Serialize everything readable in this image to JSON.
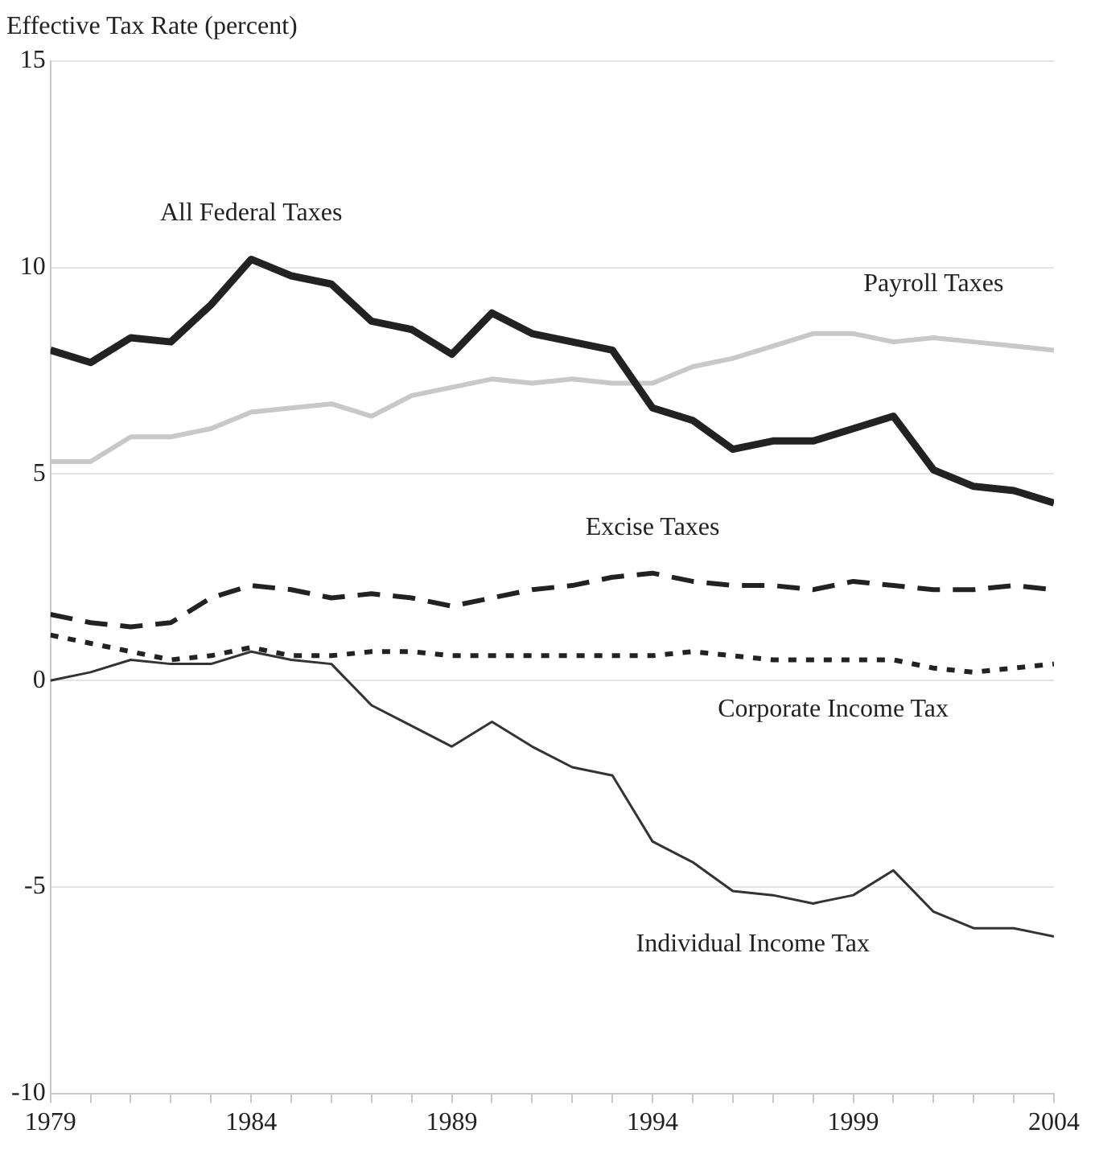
{
  "chart_data": {
    "type": "line",
    "ylabel": "Effective Tax Rate (percent)",
    "x": [
      1979,
      1980,
      1981,
      1982,
      1983,
      1984,
      1985,
      1986,
      1987,
      1988,
      1989,
      1990,
      1991,
      1992,
      1993,
      1994,
      1995,
      1996,
      1997,
      1998,
      1999,
      2000,
      2001,
      2002,
      2003,
      2004
    ],
    "series": [
      {
        "name": "All Federal Taxes",
        "color": "#222222",
        "line_style": "solid",
        "values": [
          8.0,
          7.7,
          8.3,
          8.2,
          9.1,
          10.2,
          9.8,
          9.6,
          8.7,
          8.5,
          7.9,
          8.9,
          8.4,
          8.2,
          8.0,
          6.6,
          6.3,
          5.6,
          5.8,
          5.8,
          6.1,
          6.4,
          5.1,
          4.7,
          4.6,
          4.3
        ]
      },
      {
        "name": "Payroll Taxes",
        "color": "#c8c8c8",
        "line_style": "solid",
        "values": [
          5.3,
          5.3,
          5.9,
          5.9,
          6.1,
          6.5,
          6.6,
          6.7,
          6.4,
          6.9,
          7.1,
          7.3,
          7.2,
          7.3,
          7.2,
          7.2,
          7.6,
          7.8,
          8.1,
          8.4,
          8.4,
          8.2,
          8.3,
          8.2,
          8.1,
          8.0
        ]
      },
      {
        "name": "Excise Taxes",
        "color": "#222222",
        "line_style": "dashed",
        "values": [
          1.6,
          1.4,
          1.3,
          1.4,
          2.0,
          2.3,
          2.2,
          2.0,
          2.1,
          2.0,
          1.8,
          2.0,
          2.2,
          2.3,
          2.5,
          2.6,
          2.4,
          2.3,
          2.3,
          2.2,
          2.4,
          2.3,
          2.2,
          2.2,
          2.3,
          2.2
        ]
      },
      {
        "name": "Corporate Income Tax",
        "color": "#222222",
        "line_style": "dotted",
        "values": [
          1.1,
          0.9,
          0.7,
          0.5,
          0.6,
          0.8,
          0.6,
          0.6,
          0.7,
          0.7,
          0.6,
          0.6,
          0.6,
          0.6,
          0.6,
          0.6,
          0.7,
          0.6,
          0.5,
          0.5,
          0.5,
          0.5,
          0.3,
          0.2,
          0.3,
          0.4
        ]
      },
      {
        "name": "Individual Income Tax",
        "color": "#333333",
        "line_style": "solid",
        "values": [
          0,
          0.2,
          0.5,
          0.4,
          0.4,
          0.7,
          0.5,
          0.4,
          -0.6,
          -1.1,
          -1.6,
          -1.0,
          -1.6,
          -2.1,
          -2.3,
          -3.9,
          -4.4,
          -5.1,
          -5.2,
          -5.4,
          -5.2,
          -4.6,
          -5.6,
          -6.0,
          -6.0,
          -6.2
        ]
      }
    ],
    "xlim": [
      1979,
      2004
    ],
    "xticks": [
      1979,
      {
        "value": 1980,
        "label": null
      },
      {
        "value": 1981,
        "label": null
      },
      {
        "value": 1982,
        "label": null
      },
      {
        "value": 1983,
        "label": null
      },
      1984,
      {
        "value": 1985,
        "label": null
      },
      {
        "value": 1986,
        "label": null
      },
      {
        "value": 1987,
        "label": null
      },
      {
        "value": 1988,
        "label": null
      },
      1989,
      {
        "value": 1990,
        "label": null
      },
      {
        "value": 1991,
        "label": null
      },
      {
        "value": 1992,
        "label": null
      },
      {
        "value": 1993,
        "label": null
      },
      1994,
      {
        "value": 1995,
        "label": null
      },
      {
        "value": 1996,
        "label": null
      },
      {
        "value": 1997,
        "label": null
      },
      {
        "value": 1998,
        "label": null
      },
      1999,
      {
        "value": 2000,
        "label": null
      },
      {
        "value": 2001,
        "label": null
      },
      {
        "value": 2002,
        "label": null
      },
      {
        "value": 2003,
        "label": null
      },
      2004
    ],
    "ylim": [
      -10,
      15
    ],
    "yticks": [
      -10,
      -5,
      0,
      5,
      10,
      15
    ],
    "grid": "y",
    "legend": false,
    "marker": "none"
  }
}
